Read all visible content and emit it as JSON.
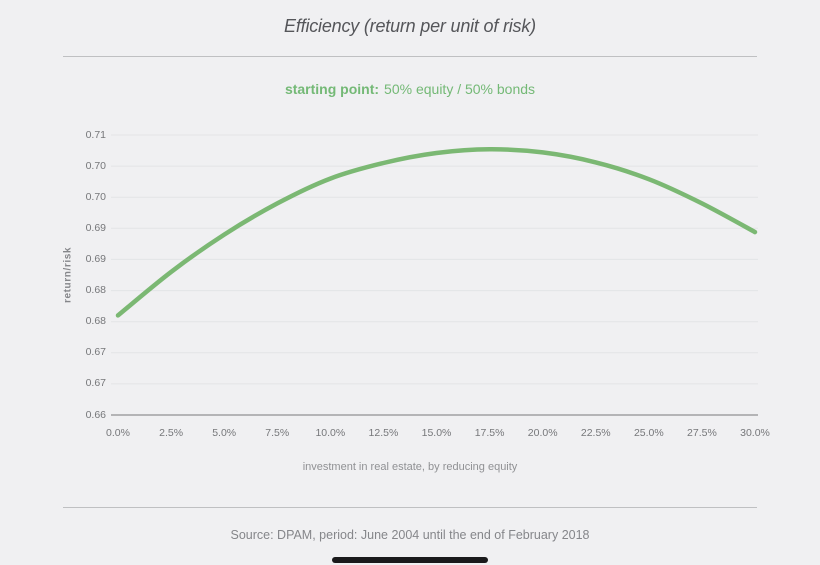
{
  "header": {
    "title": "Efficiency (return per unit of risk)"
  },
  "subtitle": {
    "label": "starting point:",
    "text": "50% equity / 50% bonds"
  },
  "footer": {
    "source": "Source: DPAM, period: June 2004 until the end of February 2018"
  },
  "colors": {
    "background": "#f0f0f2",
    "line_green": "#7bb873",
    "subtitle_green": "#74b976",
    "title_gray": "#55565a",
    "tick_gray": "#76777a",
    "grid_gray": "#e3e4e6",
    "axis_gray": "#9fa0a2",
    "divider_gray": "#bfc0c2",
    "source_gray": "#85868a",
    "bottom_bar": "#1a1a1c"
  },
  "chart_data": {
    "type": "line",
    "title": "Efficiency (return per unit of risk)",
    "subtitle": "starting point: 50% equity / 50% bonds",
    "xlabel": "investment in real estate, by reducing equity",
    "ylabel": "return/risk",
    "x": [
      0,
      2.5,
      5,
      7.5,
      10,
      12.5,
      15,
      17.5,
      20,
      22.5,
      25,
      27.5,
      30
    ],
    "x_tick_labels": [
      "0.0%",
      "2.5%",
      "5.0%",
      "7.5%",
      "10.0%",
      "12.5%",
      "15.0%",
      "17.5%",
      "20.0%",
      "22.5%",
      "25.0%",
      "27.5%",
      "30.0%"
    ],
    "series": [
      {
        "name": "return per unit of risk",
        "values": [
          0.681,
          0.688,
          0.694,
          0.699,
          0.703,
          0.7055,
          0.7071,
          0.7077,
          0.7072,
          0.7056,
          0.7029,
          0.699,
          0.6944
        ]
      }
    ],
    "xlim": [
      0,
      30
    ],
    "ylim": [
      0.665,
      0.71
    ],
    "y_grid_step": 0.005,
    "y_tick_labels": [
      "0.71",
      "0.70",
      "0.70",
      "0.69",
      "0.69",
      "0.68",
      "0.68",
      "0.67",
      "0.67",
      "0.66"
    ],
    "grid": true,
    "legend": false,
    "line_color": "#7bb873",
    "source": "Source: DPAM, period: June 2004 until the end of February 2018"
  }
}
